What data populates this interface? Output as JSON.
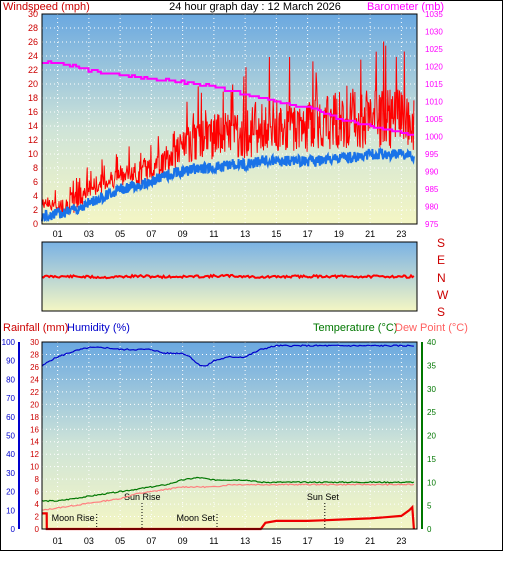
{
  "header": {
    "title": "24 hour graph day : 12 March 2026"
  },
  "chart_data": [
    {
      "type": "line",
      "panel": "wind-barometer",
      "left_axis_label": "Windspeed (mph)",
      "right_axis_label": "Barometer (mb)",
      "x_ticks": [
        "01",
        "03",
        "05",
        "07",
        "09",
        "11",
        "13",
        "15",
        "17",
        "19",
        "21",
        "23"
      ],
      "x_range": [
        0,
        24
      ],
      "ylim_left": [
        0,
        30
      ],
      "yticks_left": [
        0,
        2,
        4,
        6,
        8,
        10,
        12,
        14,
        16,
        18,
        20,
        22,
        24,
        26,
        28,
        30
      ],
      "ylim_right": [
        975,
        1035
      ],
      "yticks_right": [
        975,
        980,
        985,
        990,
        995,
        1000,
        1005,
        1010,
        1015,
        1020,
        1025,
        1030,
        1035
      ],
      "grid": true,
      "series": [
        {
          "axis": "right",
          "color": "#ff00ff",
          "x": [
            0,
            1,
            2,
            3,
            4,
            5,
            6,
            7,
            8,
            9,
            10,
            11,
            12,
            13,
            14,
            15,
            16,
            17,
            18,
            19,
            20,
            21,
            22,
            23,
            23.8
          ],
          "values": [
            1021,
            1021,
            1020,
            1019,
            1018,
            1017.5,
            1017,
            1016.5,
            1016,
            1015.5,
            1015,
            1014,
            1013,
            1012,
            1011,
            1010,
            1009,
            1008.5,
            1007,
            1005,
            1004,
            1003,
            1002,
            1001,
            1000
          ]
        },
        {
          "axis": "left",
          "color": "#ff0000",
          "x": [
            0,
            1,
            2,
            3,
            4,
            5,
            6,
            7,
            8,
            9,
            10,
            11,
            12,
            13,
            14,
            15,
            16,
            17,
            18,
            19,
            20,
            21,
            22,
            23,
            23.8
          ],
          "values": [
            3,
            2.5,
            3,
            5,
            6,
            7,
            7,
            8,
            9,
            11,
            12,
            12.5,
            13,
            13,
            13.5,
            14,
            14,
            14,
            14.5,
            15,
            15,
            15,
            15,
            15,
            14
          ],
          "gust_max": [
            5,
            5,
            8,
            9,
            10,
            11,
            12,
            14,
            16,
            18,
            20,
            22,
            22,
            24,
            24,
            25,
            24,
            25,
            26,
            27,
            27,
            27,
            27,
            27,
            26
          ]
        },
        {
          "axis": "left",
          "color": "#1a73e8",
          "x": [
            0,
            1,
            2,
            3,
            4,
            5,
            6,
            7,
            8,
            9,
            10,
            11,
            12,
            13,
            14,
            15,
            16,
            17,
            18,
            19,
            20,
            21,
            22,
            23,
            23.8
          ],
          "values": [
            1,
            1.5,
            2,
            3,
            4,
            5,
            5.5,
            6,
            7,
            7.5,
            8,
            8,
            8.5,
            8.5,
            9,
            9,
            9,
            9,
            9,
            9.5,
            9.5,
            10,
            10,
            10,
            9.5
          ]
        }
      ]
    },
    {
      "type": "scatter",
      "panel": "wind-direction",
      "direction_labels": [
        "S",
        "E",
        "N",
        "W",
        "S"
      ],
      "color": "#ff0000",
      "x_range": [
        0,
        24
      ],
      "x": [
        0,
        2,
        4,
        6,
        8,
        10,
        12,
        14,
        16,
        18,
        20,
        22,
        23.8
      ],
      "values": [
        180,
        180,
        185,
        178,
        182,
        180,
        176,
        184,
        180,
        179,
        181,
        180,
        180
      ]
    },
    {
      "type": "line",
      "panel": "rain-humidity-temperature",
      "rain_axis_label": "Rainfall (mm)",
      "humidity_axis_label": "Humidity (%)",
      "temperature_axis_label": "Temperature (°C)",
      "dewpoint_axis_label": "Dew Point (°C)",
      "x_ticks": [
        "01",
        "03",
        "05",
        "07",
        "09",
        "11",
        "13",
        "15",
        "17",
        "19",
        "21",
        "23"
      ],
      "x_range": [
        0,
        24
      ],
      "ylim_humidity": [
        0,
        100
      ],
      "yticks_humidity": [
        0,
        10,
        20,
        30,
        40,
        50,
        60,
        70,
        80,
        90,
        100
      ],
      "ylim_rain": [
        0,
        30
      ],
      "yticks_rain": [
        0,
        2,
        4,
        6,
        8,
        10,
        12,
        14,
        16,
        18,
        20,
        22,
        24,
        26,
        28,
        30
      ],
      "ylim_temp": [
        0,
        40
      ],
      "yticks_temp": [
        0,
        5,
        10,
        15,
        20,
        25,
        30,
        35,
        40
      ],
      "grid": true,
      "annotations": [
        {
          "label": "Sun Rise",
          "x": 6.4,
          "kind": "sun"
        },
        {
          "label": "Sun Set",
          "x": 18.1,
          "kind": "sun"
        },
        {
          "label": "Moon Rise",
          "x": 3.5,
          "kind": "moon"
        },
        {
          "label": "Moon Set",
          "x": 11.2,
          "kind": "moon"
        }
      ],
      "series": [
        {
          "name": "Humidity",
          "axis": "humidity",
          "color": "#0000cc",
          "x": [
            0,
            0.5,
            1,
            2,
            3,
            4,
            5,
            6,
            7,
            7.8,
            8.5,
            9,
            9.5,
            10,
            10.5,
            11,
            12,
            13,
            14,
            15,
            16,
            17,
            18,
            19,
            20,
            21,
            22,
            23,
            23.8
          ],
          "values": [
            87,
            90,
            92,
            95,
            97,
            97,
            96,
            96,
            96,
            94,
            94,
            94,
            92,
            88,
            87,
            90,
            92,
            92,
            96,
            98,
            98,
            98,
            98,
            98,
            98,
            98,
            98,
            98,
            98
          ]
        },
        {
          "name": "Temperature",
          "axis": "temp",
          "color": "#007700",
          "x": [
            0,
            1,
            2,
            3,
            4,
            5,
            6,
            7,
            8,
            9,
            10,
            11,
            12,
            13,
            14,
            15,
            16,
            17,
            18,
            19,
            20,
            21,
            22,
            23,
            23.8
          ],
          "values": [
            6,
            6,
            6.5,
            7,
            7.5,
            8,
            8.5,
            9,
            9.5,
            10.5,
            11,
            10.5,
            10.5,
            10.5,
            10,
            10,
            10,
            10,
            10,
            10,
            10,
            10,
            10,
            10,
            10
          ]
        },
        {
          "name": "Dew Point",
          "axis": "temp",
          "color": "#ff7f7f",
          "x": [
            0,
            1,
            2,
            3,
            4,
            5,
            6,
            7,
            8,
            9,
            10,
            11,
            12,
            13,
            14,
            15,
            16,
            17,
            18,
            19,
            20,
            21,
            22,
            23,
            23.8
          ],
          "values": [
            4,
            4.5,
            5,
            5.5,
            6,
            6.5,
            7.5,
            8,
            8.5,
            9,
            9,
            9,
            9.5,
            9.5,
            9.5,
            9.5,
            9.5,
            9.5,
            9.5,
            9.5,
            9.5,
            9.5,
            9.5,
            9.5,
            9.5
          ]
        },
        {
          "name": "Rainfall",
          "axis": "rain",
          "color": "#ee0000",
          "x": [
            0,
            0.3,
            0.31,
            1,
            2,
            3,
            4,
            5,
            6,
            7,
            8,
            9,
            10,
            11,
            12,
            13,
            14,
            14.3,
            15,
            16,
            17,
            18,
            19,
            20,
            21,
            22,
            23,
            23.5,
            23.7,
            23.8
          ],
          "values": [
            2.5,
            2.5,
            0,
            0,
            0,
            0,
            0,
            0,
            0,
            0,
            0,
            0,
            0,
            0,
            0,
            0,
            0,
            1,
            1.3,
            1.3,
            1.3,
            1.4,
            1.5,
            1.6,
            1.7,
            1.9,
            2.1,
            3,
            3.5,
            0
          ]
        }
      ]
    }
  ]
}
